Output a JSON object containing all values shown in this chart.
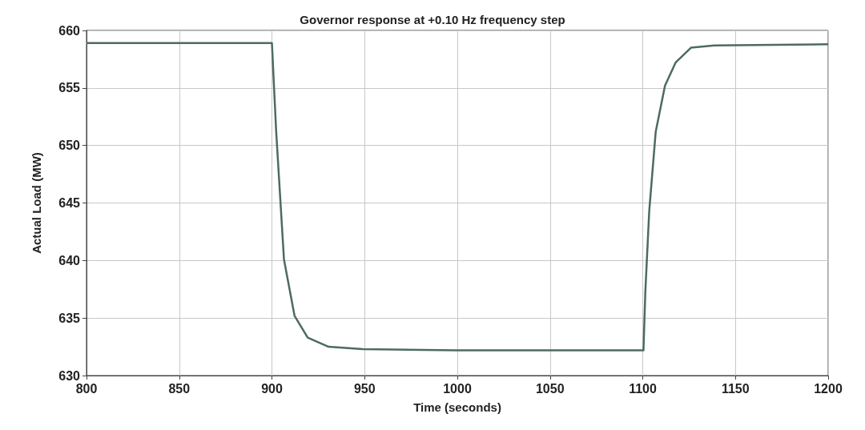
{
  "chart_data": {
    "type": "line",
    "title": "Governor response at +0.10 Hz frequency step",
    "xlabel": "Time (seconds)",
    "ylabel": "Actual Load (MW)",
    "xlim": [
      800,
      1200
    ],
    "xticks": [
      800,
      850,
      900,
      950,
      1000,
      1050,
      1100,
      1150,
      1200
    ],
    "ylim": [
      630,
      660
    ],
    "yticks": [
      630,
      635,
      640,
      645,
      650,
      655,
      660
    ],
    "grid": true,
    "line_style": "solid",
    "marker": "none",
    "series": [
      {
        "color": "#4d6b60",
        "x": [
          800,
          900,
          902.3,
          906.5,
          912.2,
          919.3,
          930.6,
          949,
          1000,
          1100,
          1100.4,
          1101.4,
          1103.5,
          1107,
          1112,
          1117.7,
          1126,
          1138.7,
          1200
        ],
        "values": [
          658.9,
          658.9,
          651.2,
          640.1,
          635.2,
          633.3,
          632.5,
          632.3,
          632.2,
          632.2,
          632.2,
          637.3,
          644.3,
          651.2,
          655.2,
          657.2,
          658.5,
          658.7,
          658.8
        ]
      }
    ]
  }
}
